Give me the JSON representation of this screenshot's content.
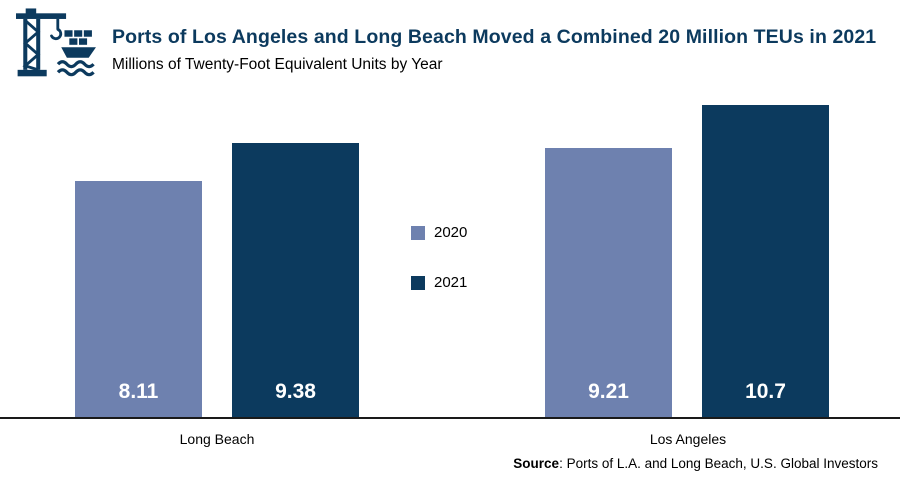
{
  "chart_data": {
    "type": "bar",
    "title": "Ports of Los Angeles and Long Beach Moved a Combined 20 Million TEUs in 2021",
    "subtitle": "Millions of Twenty-Foot Equivalent Units by Year",
    "categories": [
      "Long Beach",
      "Los Angeles"
    ],
    "series": [
      {
        "name": "2020",
        "color": "#6E81AF",
        "values": [
          8.11,
          9.21
        ]
      },
      {
        "name": "2021",
        "color": "#0C3A5E",
        "values": [
          9.38,
          10.7
        ]
      }
    ],
    "ylim": [
      0,
      10.7
    ],
    "grid": false,
    "value_labels_inside_bars": true,
    "legend_position": "center-between-groups"
  },
  "footer": {
    "source_label": "Source",
    "source_text": ": Ports of L.A. and Long Beach, U.S. Global Investors"
  },
  "icon": {
    "name": "port-crane-and-ship",
    "color": "#0C3A5E"
  },
  "colors": {
    "title": "#0C3A5E",
    "series_2020": "#6E81AF",
    "series_2021": "#0C3A5E",
    "value_label": "#FFFFFF",
    "axis_line": "#1A1A1A",
    "background": "#FFFFFF"
  }
}
